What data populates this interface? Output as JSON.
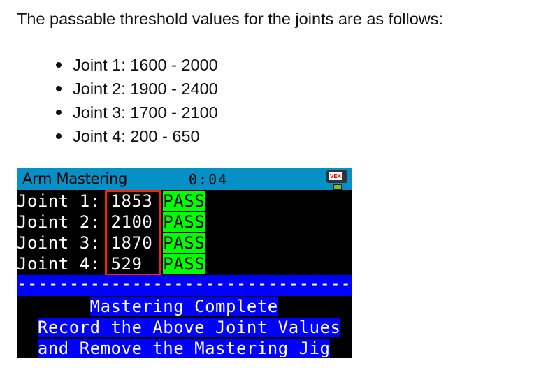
{
  "intro": "The passable threshold values for the joints are as follows:",
  "thresholds": [
    "Joint 1: 1600 - 2000",
    "Joint 2: 1900 - 2400",
    "Joint 3: 1700 - 2100",
    "Joint 4: 200 - 650"
  ],
  "screen": {
    "title": "Arm Mastering",
    "timer": "0:04",
    "logo": "VEX",
    "rows": [
      {
        "label": "Joint 1: ",
        "value": "1853 ",
        "status": "PASS"
      },
      {
        "label": "Joint 2: ",
        "value": "2100 ",
        "status": "PASS"
      },
      {
        "label": "Joint 3: ",
        "value": "1870 ",
        "status": "PASS"
      },
      {
        "label": "Joint 4: ",
        "value": "529  ",
        "status": "PASS"
      }
    ],
    "divider": "--------------------------------",
    "messages": [
      "Mastering Complete",
      "Record the Above Joint Values",
      "and Remove the Mastering Jig"
    ],
    "colors": {
      "header": "#0590c6",
      "pass": "#00ff00",
      "highlight": "#0000ff",
      "box": "#ff2200"
    }
  }
}
